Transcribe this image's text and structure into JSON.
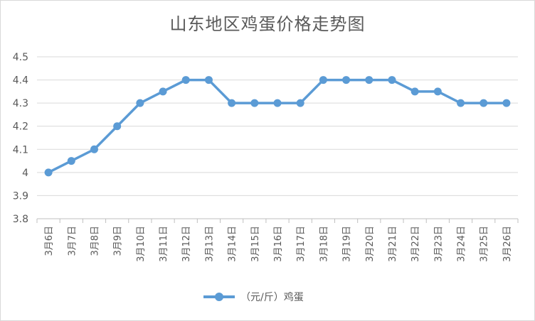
{
  "chart_data": {
    "type": "line",
    "title": "山东地区鸡蛋价格走势图",
    "categories": [
      "3月6日",
      "3月7日",
      "3月8日",
      "3月9日",
      "3月10日",
      "3月11日",
      "3月12日",
      "3月13日",
      "3月14日",
      "3月15日",
      "3月16日",
      "3月17日",
      "3月18日",
      "3月19日",
      "3月20日",
      "3月21日",
      "3月22日",
      "3月23日",
      "3月24日",
      "3月25日",
      "3月26日"
    ],
    "series": [
      {
        "name": "（元/斤）鸡蛋",
        "values": [
          4.0,
          4.05,
          4.1,
          4.2,
          4.3,
          4.35,
          4.4,
          4.4,
          4.3,
          4.3,
          4.3,
          4.3,
          4.4,
          4.4,
          4.4,
          4.4,
          4.35,
          4.35,
          4.3,
          4.3,
          4.3
        ],
        "color": "#5b9bd5"
      }
    ],
    "y_ticks": [
      "3.8",
      "3.9",
      "4",
      "4.1",
      "4.2",
      "4.3",
      "4.4",
      "4.5"
    ],
    "ylim": [
      3.8,
      4.5
    ],
    "xlabel": "",
    "ylabel": "",
    "grid": true,
    "legend_position": "bottom"
  },
  "legend": {
    "label": "（元/斤）鸡蛋"
  }
}
